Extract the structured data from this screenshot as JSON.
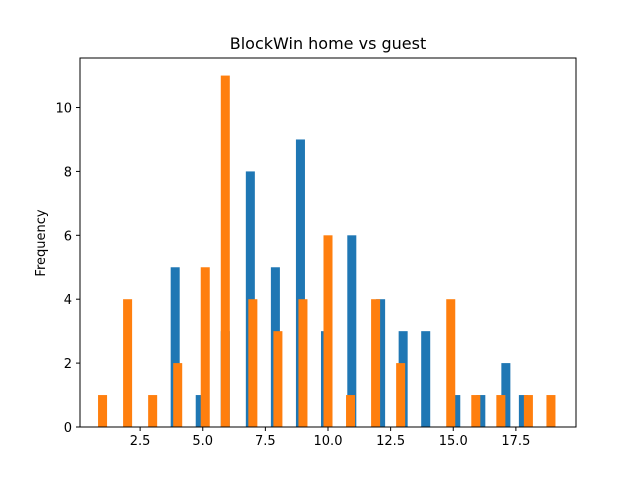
{
  "chart_data": {
    "type": "bar",
    "title": "BlockWin home vs guest",
    "xlabel": "",
    "ylabel": "Frequency",
    "xlim": [
      0.1,
      19.9
    ],
    "ylim": [
      0,
      11.55
    ],
    "xticks": [
      2.5,
      5.0,
      7.5,
      10.0,
      12.5,
      15.0,
      17.5
    ],
    "xtick_labels": [
      "2.5",
      "5.0",
      "7.5",
      "10.0",
      "12.5",
      "15.0",
      "17.5"
    ],
    "yticks": [
      0,
      2,
      4,
      6,
      8,
      10
    ],
    "ytick_labels": [
      "0",
      "2",
      "4",
      "6",
      "8",
      "10"
    ],
    "grid": false,
    "series": [
      {
        "color": "#1f77b4",
        "bin_width": 0.36,
        "bins": [
          {
            "x": 3.9,
            "value": 5
          },
          {
            "x": 4.9,
            "value": 1
          },
          {
            "x": 5.9,
            "value": 3
          },
          {
            "x": 6.9,
            "value": 8
          },
          {
            "x": 7.9,
            "value": 5
          },
          {
            "x": 8.9,
            "value": 9
          },
          {
            "x": 9.9,
            "value": 3
          },
          {
            "x": 10.95,
            "value": 6
          },
          {
            "x": 12.1,
            "value": 4
          },
          {
            "x": 13.0,
            "value": 3
          },
          {
            "x": 13.9,
            "value": 3
          },
          {
            "x": 15.1,
            "value": 1
          },
          {
            "x": 16.1,
            "value": 1
          },
          {
            "x": 17.1,
            "value": 2
          },
          {
            "x": 17.8,
            "value": 1
          }
        ]
      },
      {
        "color": "#ff7f0e",
        "bin_width": 0.36,
        "bins": [
          {
            "x": 1.0,
            "value": 1
          },
          {
            "x": 2.0,
            "value": 4
          },
          {
            "x": 3.0,
            "value": 1
          },
          {
            "x": 4.0,
            "value": 2
          },
          {
            "x": 5.1,
            "value": 5
          },
          {
            "x": 5.9,
            "value": 11
          },
          {
            "x": 7.0,
            "value": 4
          },
          {
            "x": 8.0,
            "value": 3
          },
          {
            "x": 9.0,
            "value": 4
          },
          {
            "x": 10.0,
            "value": 6
          },
          {
            "x": 10.9,
            "value": 1
          },
          {
            "x": 11.9,
            "value": 4
          },
          {
            "x": 12.9,
            "value": 2
          },
          {
            "x": 14.9,
            "value": 4
          },
          {
            "x": 15.9,
            "value": 1
          },
          {
            "x": 16.9,
            "value": 1
          },
          {
            "x": 18.0,
            "value": 1
          },
          {
            "x": 18.9,
            "value": 1
          }
        ]
      }
    ]
  }
}
